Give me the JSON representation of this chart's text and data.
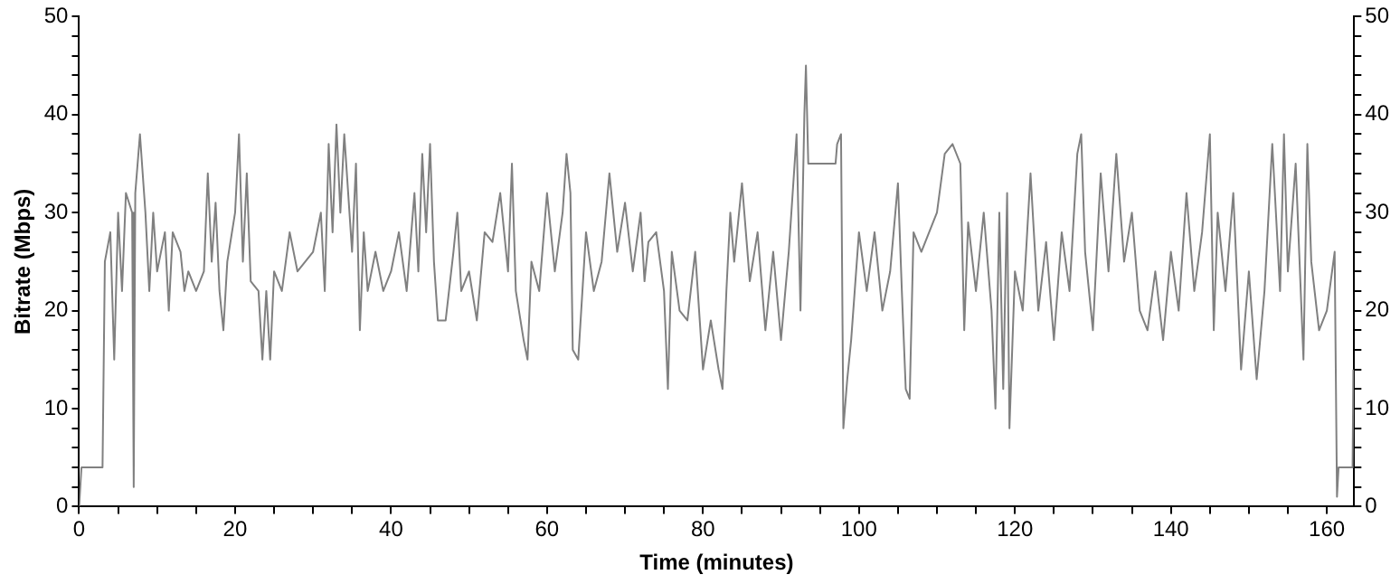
{
  "chart_data": {
    "type": "line",
    "xlabel": "Time (minutes)",
    "ylabel": "Bitrate (Mbps)",
    "x": [
      0,
      0.3,
      3,
      3.3,
      4,
      4.5,
      5,
      5.5,
      6,
      6.8,
      7,
      7.2,
      7.8,
      8.5,
      9,
      9.5,
      10,
      11,
      11.5,
      12,
      13,
      13.5,
      14,
      15,
      16,
      16.5,
      17,
      17.5,
      18,
      18.5,
      19,
      20,
      20.5,
      21,
      21.5,
      22,
      23,
      23.5,
      24,
      24.5,
      25,
      26,
      27,
      28,
      29,
      30,
      31,
      31.5,
      32,
      32.5,
      33,
      33.5,
      34,
      35,
      35.5,
      36,
      36.5,
      37,
      38,
      39,
      40,
      41,
      42,
      43,
      43.5,
      44,
      44.5,
      45,
      45.5,
      46,
      47,
      48,
      48.5,
      49,
      50,
      51,
      52,
      53,
      54,
      55,
      55.5,
      56,
      57,
      57.5,
      58,
      59,
      60,
      61,
      62,
      62.5,
      63,
      63.3,
      64,
      65,
      66,
      67,
      68,
      69,
      70,
      71,
      72,
      72.5,
      73,
      74,
      75,
      75.5,
      76,
      77,
      78,
      79,
      79.5,
      80,
      81,
      82,
      82.5,
      83,
      83.5,
      84,
      85,
      86,
      87,
      88,
      89,
      90,
      91,
      92,
      92.5,
      93,
      93.2,
      93.5,
      97,
      97.2,
      97.7,
      98,
      98.5,
      99,
      100,
      101,
      102,
      103,
      104,
      105,
      105.5,
      106,
      106.5,
      107,
      108,
      109,
      110,
      111,
      112,
      113,
      113.5,
      114,
      115,
      116,
      117,
      117.5,
      118,
      118.5,
      119,
      119.3,
      120,
      121,
      122,
      123,
      124,
      125,
      126,
      127,
      128,
      128.5,
      129,
      130,
      131,
      132,
      133,
      134,
      135,
      136,
      137,
      138,
      139,
      140,
      141,
      142,
      143,
      144,
      145,
      145.5,
      146,
      147,
      148,
      149,
      150,
      151,
      152,
      153,
      154,
      154.5,
      155,
      156,
      157,
      157.5,
      158,
      159,
      160,
      161,
      161.3,
      161.5,
      163.3,
      163.4
    ],
    "series": [
      {
        "color": "#808080",
        "values": [
          0,
          4,
          4,
          25,
          28,
          15,
          30,
          22,
          32,
          30,
          2,
          32,
          38,
          30,
          22,
          30,
          24,
          28,
          20,
          28,
          26,
          22,
          24,
          22,
          24,
          34,
          25,
          31,
          22,
          18,
          25,
          30,
          38,
          25,
          34,
          23,
          22,
          15,
          22,
          15,
          24,
          22,
          28,
          24,
          25,
          26,
          30,
          22,
          37,
          28,
          39,
          30,
          38,
          26,
          35,
          18,
          28,
          22,
          26,
          22,
          24,
          28,
          22,
          32,
          24,
          36,
          28,
          37,
          25,
          19,
          19,
          26,
          30,
          22,
          24,
          19,
          28,
          27,
          32,
          24,
          35,
          22,
          17,
          15,
          25,
          22,
          32,
          24,
          30,
          36,
          32,
          16,
          15,
          28,
          22,
          25,
          34,
          26,
          31,
          24,
          30,
          23,
          27,
          28,
          22,
          12,
          26,
          20,
          19,
          26,
          20,
          14,
          19,
          14,
          12,
          22,
          30,
          25,
          33,
          23,
          28,
          18,
          26,
          17,
          26,
          38,
          20,
          40,
          45,
          35,
          35,
          37,
          38,
          8,
          13,
          17,
          28,
          22,
          28,
          20,
          24,
          33,
          22,
          12,
          11,
          28,
          26,
          28,
          30,
          36,
          37,
          35,
          18,
          29,
          22,
          30,
          20,
          10,
          30,
          12,
          32,
          8,
          24,
          20,
          34,
          20,
          27,
          17,
          28,
          22,
          36,
          38,
          26,
          18,
          34,
          24,
          36,
          25,
          30,
          20,
          18,
          24,
          17,
          26,
          20,
          32,
          22,
          28,
          38,
          18,
          30,
          22,
          32,
          14,
          24,
          13,
          22,
          37,
          22,
          38,
          24,
          35,
          15,
          37,
          25,
          18,
          20,
          26,
          1,
          4,
          4,
          14
        ]
      }
    ],
    "xlim": [
      0,
      163.5
    ],
    "xticks": [
      0,
      {
        "value": 5,
        "label": null
      },
      {
        "value": 10,
        "label": null
      },
      {
        "value": 15,
        "label": null
      },
      20,
      {
        "value": 25,
        "label": null
      },
      {
        "value": 30,
        "label": null
      },
      {
        "value": 35,
        "label": null
      },
      40,
      {
        "value": 45,
        "label": null
      },
      {
        "value": 50,
        "label": null
      },
      {
        "value": 55,
        "label": null
      },
      60,
      {
        "value": 65,
        "label": null
      },
      {
        "value": 70,
        "label": null
      },
      {
        "value": 75,
        "label": null
      },
      80,
      {
        "value": 85,
        "label": null
      },
      {
        "value": 90,
        "label": null
      },
      {
        "value": 95,
        "label": null
      },
      100,
      {
        "value": 105,
        "label": null
      },
      {
        "value": 110,
        "label": null
      },
      {
        "value": 115,
        "label": null
      },
      120,
      {
        "value": 125,
        "label": null
      },
      {
        "value": 130,
        "label": null
      },
      {
        "value": 135,
        "label": null
      },
      140,
      {
        "value": 145,
        "label": null
      },
      {
        "value": 150,
        "label": null
      },
      {
        "value": 155,
        "label": null
      },
      160
    ],
    "ylim": [
      0,
      50
    ],
    "yticks": [
      0,
      {
        "value": 2,
        "label": null
      },
      {
        "value": 4,
        "label": null
      },
      {
        "value": 6,
        "label": null
      },
      {
        "value": 8,
        "label": null
      },
      10,
      {
        "value": 12,
        "label": null
      },
      {
        "value": 14,
        "label": null
      },
      {
        "value": 16,
        "label": null
      },
      {
        "value": 18,
        "label": null
      },
      20,
      {
        "value": 22,
        "label": null
      },
      {
        "value": 24,
        "label": null
      },
      {
        "value": 26,
        "label": null
      },
      {
        "value": 28,
        "label": null
      },
      30,
      {
        "value": 32,
        "label": null
      },
      {
        "value": 34,
        "label": null
      },
      {
        "value": 36,
        "label": null
      },
      {
        "value": 38,
        "label": null
      },
      40,
      {
        "value": 42,
        "label": null
      },
      {
        "value": 44,
        "label": null
      },
      {
        "value": 46,
        "label": null
      },
      {
        "value": 48,
        "label": null
      },
      50
    ],
    "y2lim": [
      0,
      50
    ],
    "y2ticks": [
      0,
      {
        "value": 2,
        "label": null
      },
      {
        "value": 4,
        "label": null
      },
      {
        "value": 6,
        "label": null
      },
      {
        "value": 8,
        "label": null
      },
      10,
      {
        "value": 12,
        "label": null
      },
      {
        "value": 14,
        "label": null
      },
      {
        "value": 16,
        "label": null
      },
      {
        "value": 18,
        "label": null
      },
      20,
      {
        "value": 22,
        "label": null
      },
      {
        "value": 24,
        "label": null
      },
      {
        "value": 26,
        "label": null
      },
      {
        "value": 28,
        "label": null
      },
      30,
      {
        "value": 32,
        "label": null
      },
      {
        "value": 34,
        "label": null
      },
      {
        "value": 36,
        "label": null
      },
      {
        "value": 38,
        "label": null
      },
      40,
      {
        "value": 42,
        "label": null
      },
      {
        "value": 44,
        "label": null
      },
      {
        "value": 46,
        "label": null
      },
      {
        "value": 48,
        "label": null
      },
      50
    ],
    "grid": false,
    "legend": false,
    "marker": "none",
    "line_style": "solid"
  }
}
